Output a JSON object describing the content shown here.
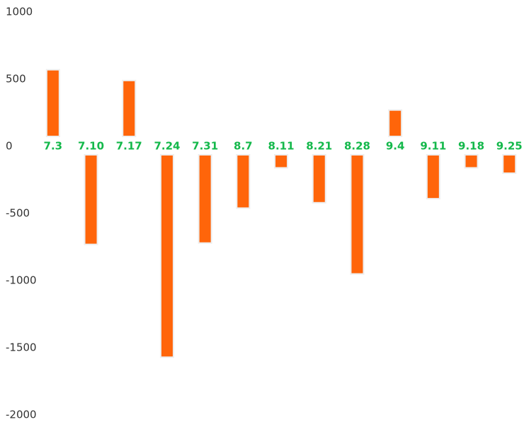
{
  "chart_data": {
    "type": "bar",
    "categories": [
      "7.3",
      "7.10",
      "7.17",
      "7.24",
      "7.31",
      "8.7",
      "8.11",
      "8.21",
      "8.28",
      "9.4",
      "9.11",
      "9.18",
      "9.25"
    ],
    "values": [
      570,
      -730,
      490,
      -1570,
      -720,
      -460,
      -160,
      -420,
      -950,
      270,
      -390,
      -160,
      -200
    ],
    "color": "#ff650a",
    "label_color": "#14b84b",
    "ylim": [
      -2000,
      1000
    ],
    "yticks": [
      -2000,
      -1500,
      -1000,
      -500,
      0,
      500,
      1000
    ],
    "grid": false
  }
}
